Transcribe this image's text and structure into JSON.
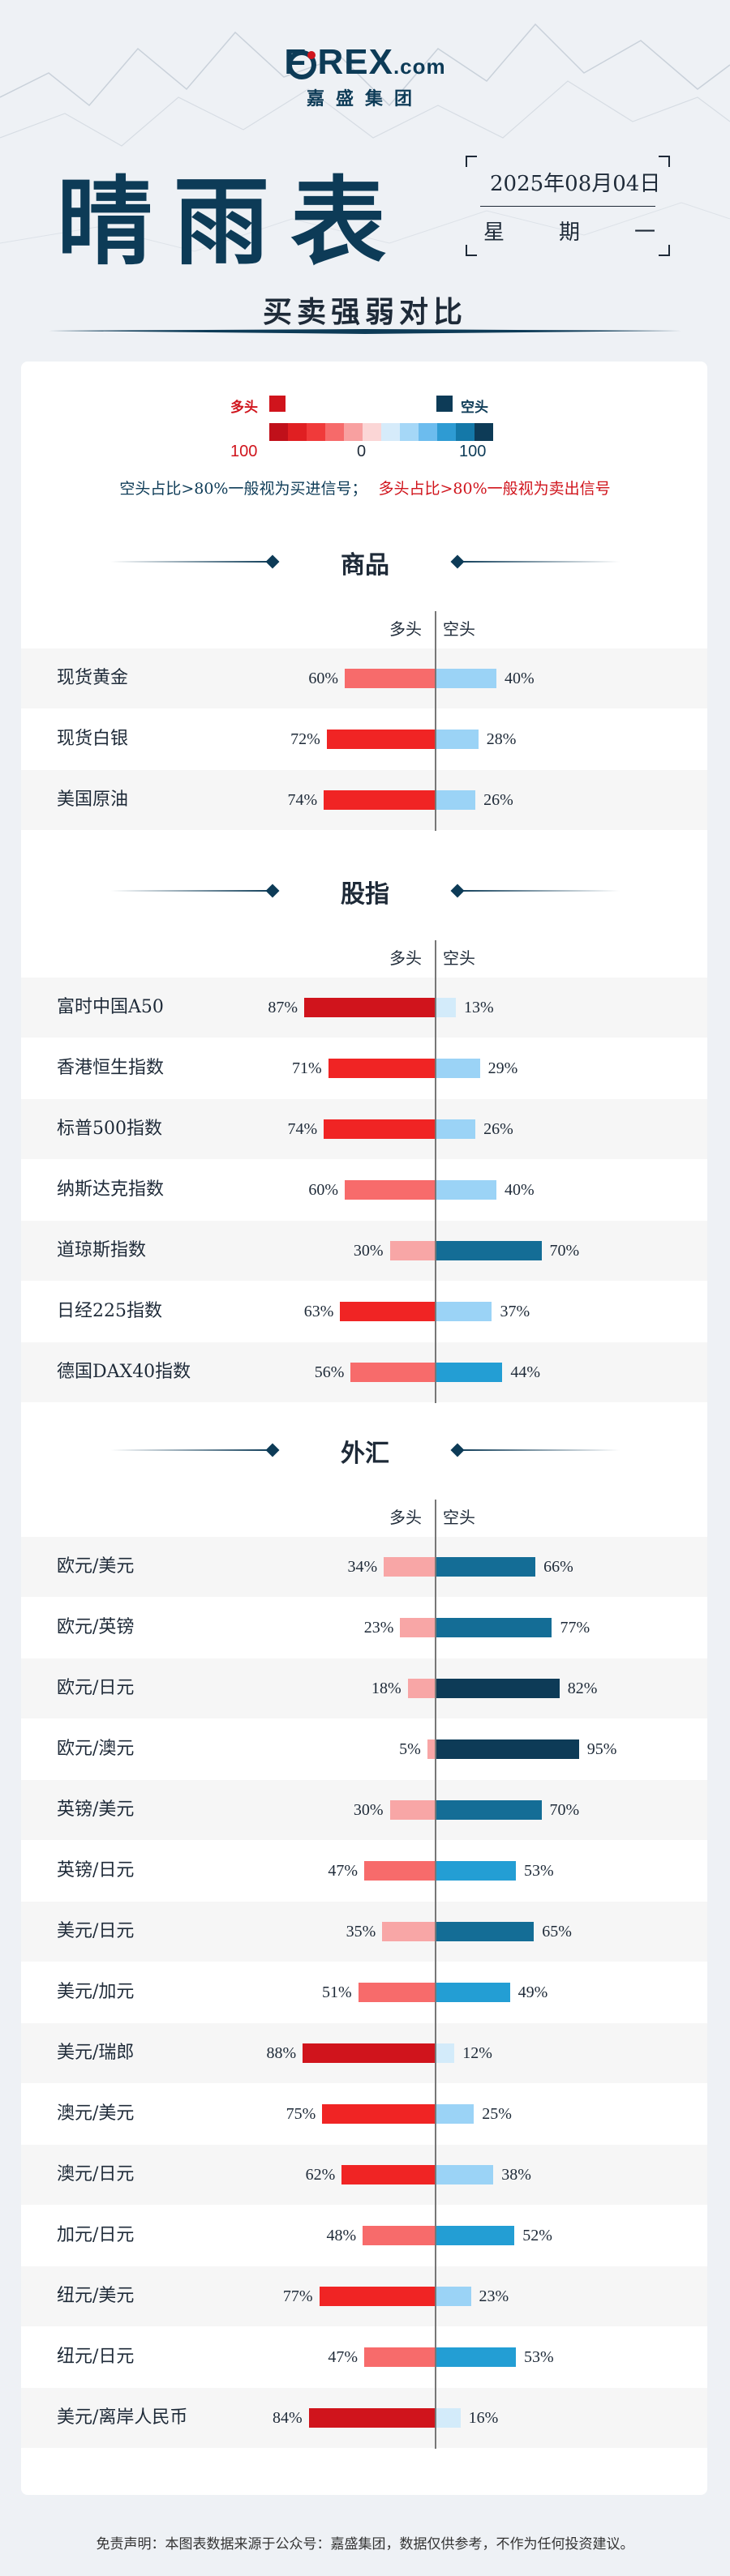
{
  "header": {
    "logo_main": "F REX",
    "logo_suffix": ".com",
    "logo_sub": "嘉盛集团",
    "title": "晴雨表",
    "date": "2025年08月04日",
    "weekday": [
      "星",
      "期",
      "一"
    ],
    "subtitle": "买卖强弱对比"
  },
  "legend": {
    "long_label": "多头",
    "short_label": "空头",
    "scale_left": "100",
    "scale_mid": "0",
    "scale_right": "100",
    "long_color": "#d0141c",
    "short_color": "#0d3b57",
    "scale_colors": [
      "#c0101a",
      "#e01f22",
      "#f03a3a",
      "#f66a6a",
      "#f8a0a0",
      "#fbd6d6",
      "#d6ebfa",
      "#a5d7f7",
      "#6cbcee",
      "#2e9bd3",
      "#1478a8",
      "#0d3b57"
    ]
  },
  "signal": {
    "short_signal": "空头占比>80%一般视为买进信号；",
    "long_signal": "多头占比>80%一般视为卖出信号"
  },
  "columns": {
    "long": "多头",
    "short": "空头"
  },
  "sections": [
    {
      "title": "商品",
      "rows": [
        {
          "name": "现货黄金",
          "long": 60,
          "short": 40
        },
        {
          "name": "现货白银",
          "long": 72,
          "short": 28
        },
        {
          "name": "美国原油",
          "long": 74,
          "short": 26
        }
      ]
    },
    {
      "title": "股指",
      "rows": [
        {
          "name": "富时中国A50",
          "long": 87,
          "short": 13
        },
        {
          "name": "香港恒生指数",
          "long": 71,
          "short": 29
        },
        {
          "name": "标普500指数",
          "long": 74,
          "short": 26
        },
        {
          "name": "纳斯达克指数",
          "long": 60,
          "short": 40
        },
        {
          "name": "道琼斯指数",
          "long": 30,
          "short": 70
        },
        {
          "name": "日经225指数",
          "long": 63,
          "short": 37
        },
        {
          "name": "德国DAX40指数",
          "long": 56,
          "short": 44
        }
      ]
    },
    {
      "title": "外汇",
      "rows": [
        {
          "name": "欧元/美元",
          "long": 34,
          "short": 66
        },
        {
          "name": "欧元/英镑",
          "long": 23,
          "short": 77
        },
        {
          "name": "欧元/日元",
          "long": 18,
          "short": 82
        },
        {
          "name": "欧元/澳元",
          "long": 5,
          "short": 95
        },
        {
          "name": "英镑/美元",
          "long": 30,
          "short": 70
        },
        {
          "name": "英镑/日元",
          "long": 47,
          "short": 53
        },
        {
          "name": "美元/日元",
          "long": 35,
          "short": 65
        },
        {
          "name": "美元/加元",
          "long": 51,
          "short": 49
        },
        {
          "name": "美元/瑞郎",
          "long": 88,
          "short": 12
        },
        {
          "name": "澳元/美元",
          "long": 75,
          "short": 25
        },
        {
          "name": "澳元/日元",
          "long": 62,
          "short": 38
        },
        {
          "name": "加元/日元",
          "long": 48,
          "short": 52
        },
        {
          "name": "纽元/美元",
          "long": 77,
          "short": 23
        },
        {
          "name": "纽元/日元",
          "long": 47,
          "short": 53
        },
        {
          "name": "美元/离岸人民币",
          "long": 84,
          "short": 16
        }
      ]
    }
  ],
  "footer": "免责声明：本图表数据来源于公众号：嘉盛集团，数据仅供参考，不作为任何投资建议。"
}
